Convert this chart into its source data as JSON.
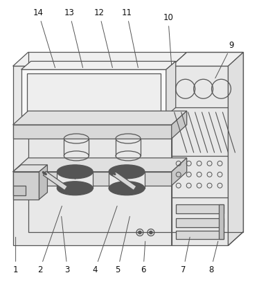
{
  "fig_width": 3.74,
  "fig_height": 4.07,
  "dpi": 100,
  "bg_color": "#ffffff",
  "line_color": "#555555",
  "line_width": 0.9,
  "fill_light": "#e8e8e8",
  "fill_mid": "#d0d0d0",
  "label_fontsize": 8.5
}
